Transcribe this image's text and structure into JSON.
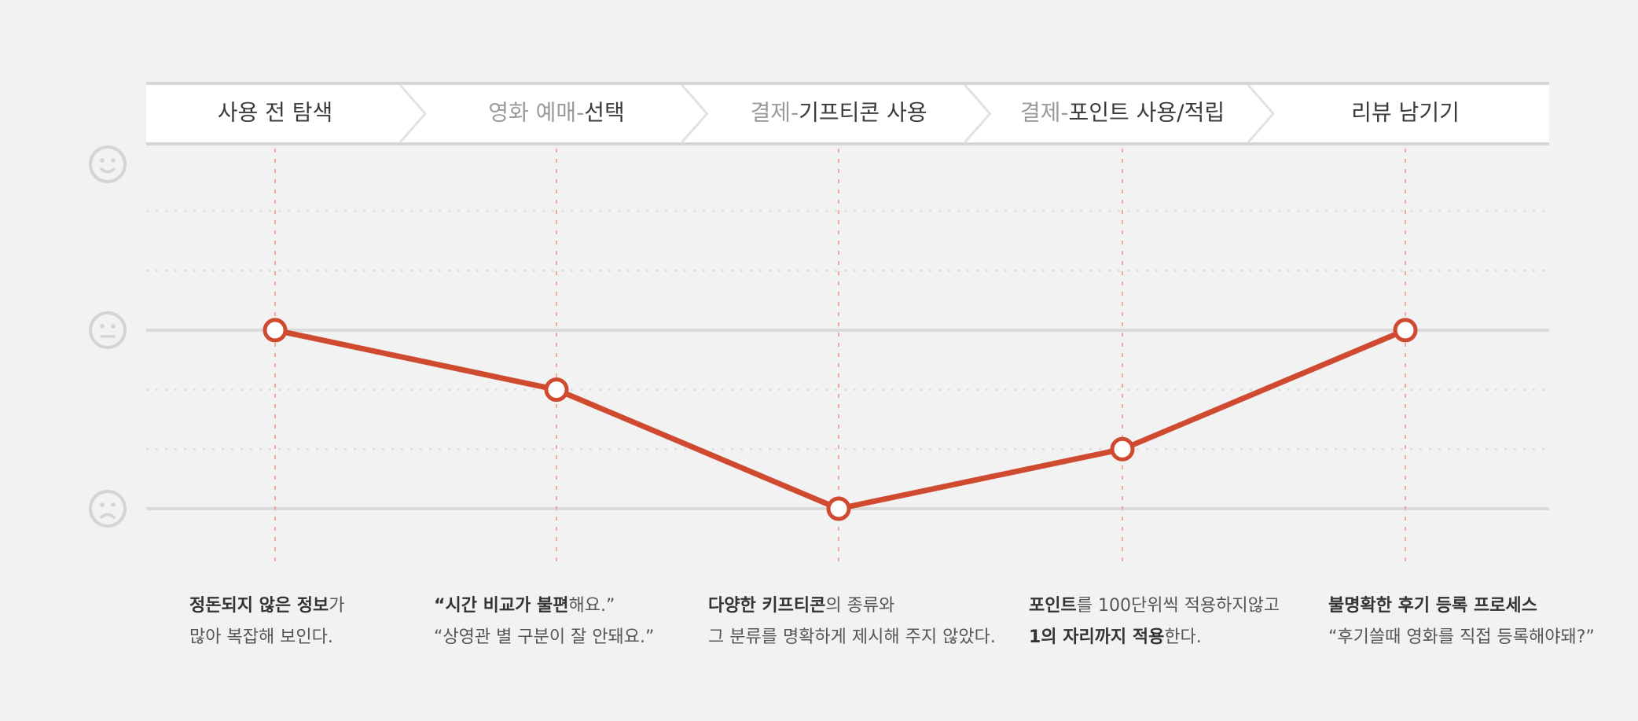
{
  "chart_data": {
    "type": "line",
    "categories": [
      {
        "name": "사용 전 탐색"
      },
      {
        "prefix": "영화 예매-",
        "name": "선택"
      },
      {
        "prefix": "결제-",
        "name": "기프티콘 사용"
      },
      {
        "prefix": "결제-",
        "name": "포인트 사용/적립"
      },
      {
        "name": "리뷰 남기기"
      }
    ],
    "values": [
      3,
      2,
      0,
      1,
      3
    ],
    "color": "#d04a30",
    "ylim": [
      0,
      6
    ],
    "yticks": [
      0,
      1,
      2,
      3,
      4,
      5
    ],
    "solid_yticks": [
      0,
      3
    ],
    "face_levels": [
      {
        "value": 0,
        "mood": "sad"
      },
      {
        "value": 3,
        "mood": "neutral"
      },
      {
        "value": 6,
        "mood": "happy"
      }
    ],
    "grid": true
  },
  "notes": [
    [
      [
        {
          "text": "정돈되지 않은 정보",
          "bold": true
        },
        {
          "text": "가",
          "bold": false
        }
      ],
      [
        {
          "text": "많아 복잡해 보인다.",
          "bold": false
        }
      ]
    ],
    [
      [
        {
          "text": "“시간 비교가 불편",
          "bold": true
        },
        {
          "text": "해요.”",
          "bold": false
        }
      ],
      [
        {
          "text": "“상영관 별 구분이 잘 안돼요.”",
          "bold": false
        }
      ]
    ],
    [
      [
        {
          "text": "다양한 키프티콘",
          "bold": true
        },
        {
          "text": "의 종류와",
          "bold": false
        }
      ],
      [
        {
          "text": "그 분류를 명확하게 제시해 주지 않았다.",
          "bold": false
        }
      ]
    ],
    [
      [
        {
          "text": "포인트",
          "bold": true
        },
        {
          "text": "를 100단위씩 적용하지않고",
          "bold": false
        }
      ],
      [
        {
          "text": "1의 자리까지 적용",
          "bold": true
        },
        {
          "text": "한다.",
          "bold": false
        }
      ]
    ],
    [
      [
        {
          "text": "불명확한 후기 등록 프로세스",
          "bold": true
        }
      ],
      [
        {
          "text": "“후기쓸때 영화를 직접 등록해야돼?”",
          "bold": false
        }
      ]
    ]
  ]
}
